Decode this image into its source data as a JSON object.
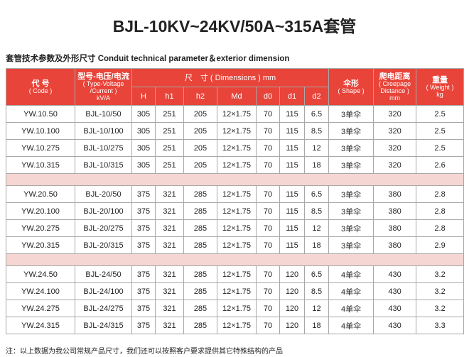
{
  "title": "BJL-10KV~24KV/50A~315A套管",
  "subtitle": "套管技术参数及外形尺寸  Conduit technical parameter＆exterior dimension",
  "header": {
    "code": [
      "代 号",
      "( Code )"
    ],
    "type": [
      "型号-电压/电流",
      "( Type-Voltage",
      "/Current )",
      "kV/A"
    ],
    "dimensions": "尺　寸 ( Dimensions ) mm",
    "dimension_columns": [
      "H",
      "h1",
      "h2",
      "Md",
      "d0",
      "d1",
      "d2"
    ],
    "shape": [
      "伞形",
      "( Shape )"
    ],
    "creepage": [
      "爬电距离",
      "( Creepage",
      "Distance )",
      "mm"
    ],
    "weight": [
      "重量",
      "( Weight )",
      "kg"
    ]
  },
  "groups": [
    [
      [
        "YW.10.50",
        "BJL-10/50",
        "305",
        "251",
        "205",
        "12×1.75",
        "70",
        "115",
        "6.5",
        "3单伞",
        "320",
        "2.5"
      ],
      [
        "YW.10.100",
        "BJL-10/100",
        "305",
        "251",
        "205",
        "12×1.75",
        "70",
        "115",
        "8.5",
        "3单伞",
        "320",
        "2.5"
      ],
      [
        "YW.10.275",
        "BJL-10/275",
        "305",
        "251",
        "205",
        "12×1.75",
        "70",
        "115",
        "12",
        "3单伞",
        "320",
        "2.5"
      ],
      [
        "YW.10.315",
        "BJL-10/315",
        "305",
        "251",
        "205",
        "12×1.75",
        "70",
        "115",
        "18",
        "3单伞",
        "320",
        "2.6"
      ]
    ],
    [
      [
        "YW.20.50",
        "BJL-20/50",
        "375",
        "321",
        "285",
        "12×1.75",
        "70",
        "115",
        "6.5",
        "3单伞",
        "380",
        "2.8"
      ],
      [
        "YW.20.100",
        "BJL-20/100",
        "375",
        "321",
        "285",
        "12×1.75",
        "70",
        "115",
        "8.5",
        "3单伞",
        "380",
        "2.8"
      ],
      [
        "YW.20.275",
        "BJL-20/275",
        "375",
        "321",
        "285",
        "12×1.75",
        "70",
        "115",
        "12",
        "3单伞",
        "380",
        "2.8"
      ],
      [
        "YW.20.315",
        "BJL-20/315",
        "375",
        "321",
        "285",
        "12×1.75",
        "70",
        "115",
        "18",
        "3单伞",
        "380",
        "2.9"
      ]
    ],
    [
      [
        "YW.24.50",
        "BJL-24/50",
        "375",
        "321",
        "285",
        "12×1.75",
        "70",
        "120",
        "6.5",
        "4单伞",
        "430",
        "3.2"
      ],
      [
        "YW.24.100",
        "BJL-24/100",
        "375",
        "321",
        "285",
        "12×1.75",
        "70",
        "120",
        "8.5",
        "4单伞",
        "430",
        "3.2"
      ],
      [
        "YW.24.275",
        "BJL-24/275",
        "375",
        "321",
        "285",
        "12×1.75",
        "70",
        "120",
        "12",
        "4单伞",
        "430",
        "3.2"
      ],
      [
        "YW.24.315",
        "BJL-24/315",
        "375",
        "321",
        "285",
        "12×1.75",
        "70",
        "120",
        "18",
        "4单伞",
        "430",
        "3.3"
      ]
    ]
  ],
  "note": "注：以上数据为我公司常规产品尺寸，我们还可以按照客户要求提供其它特殊结构的产品"
}
